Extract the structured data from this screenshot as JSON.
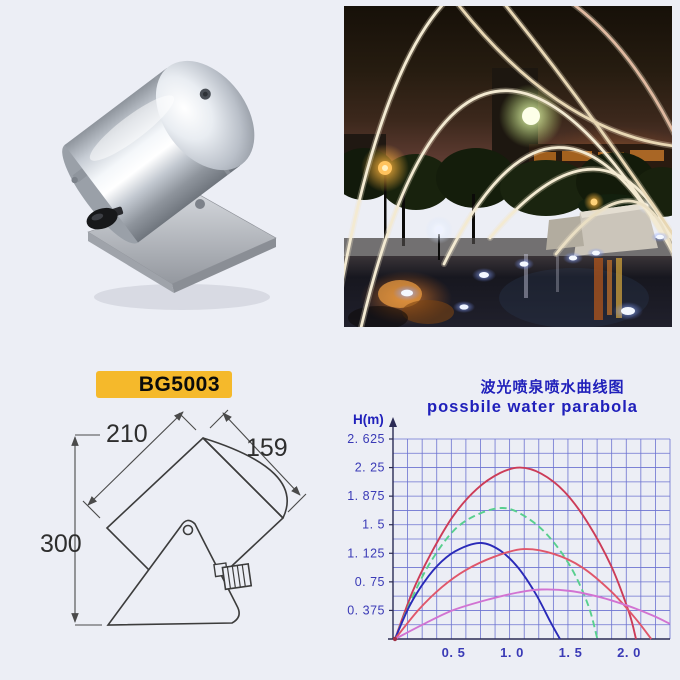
{
  "page": {
    "background": "#ECEEF5"
  },
  "product": {
    "model_label": "BG5003",
    "model_label_bg": "#F5B92B",
    "model_label_text_color": "#0B0B0B"
  },
  "diagram": {
    "dim_body_length": "210",
    "dim_face_diameter": "159",
    "dim_total_height": "300"
  },
  "chart_data": {
    "type": "line",
    "title_zh": "波光喷泉喷水曲线图",
    "title_en": "possbile water parabola",
    "ylabel": "H(m)",
    "title_color": "#2020BB",
    "grid_color": "#4D55C8",
    "axis_color": "#2b2b55",
    "xlim": [
      0,
      2.35
    ],
    "ylim": [
      0,
      2.625
    ],
    "grid": {
      "minor_x": 0.125,
      "minor_y": 0.1875,
      "visible": true
    },
    "legend_position": "none",
    "x_ticks": [
      {
        "value": 0.5,
        "label": "0. 5"
      },
      {
        "value": 1.0,
        "label": "1. 0"
      },
      {
        "value": 1.5,
        "label": "1. 5"
      },
      {
        "value": 2.0,
        "label": "2. 0"
      }
    ],
    "y_ticks": [
      {
        "value": 0.375,
        "label": "0. 375"
      },
      {
        "value": 0.75,
        "label": "0. 75"
      },
      {
        "value": 1.125,
        "label": "1. 125"
      },
      {
        "value": 1.5,
        "label": "1. 5"
      },
      {
        "value": 1.875,
        "label": "1. 875"
      },
      {
        "value": 2.25,
        "label": "2. 25"
      },
      {
        "value": 2.625,
        "label": "2. 625"
      }
    ],
    "series": [
      {
        "name": "tall-red-parabola",
        "color": "#CC3C58",
        "dash": null,
        "points": [
          [
            0,
            0
          ],
          [
            0.15,
            0.62
          ],
          [
            0.3,
            1.1
          ],
          [
            0.5,
            1.62
          ],
          [
            0.7,
            1.97
          ],
          [
            0.9,
            2.18
          ],
          [
            1.07,
            2.25
          ],
          [
            1.25,
            2.17
          ],
          [
            1.45,
            1.93
          ],
          [
            1.65,
            1.52
          ],
          [
            1.85,
            0.95
          ],
          [
            2.0,
            0.35
          ],
          [
            2.06,
            0
          ]
        ]
      },
      {
        "name": "green-parabola",
        "color": "#58CF8E",
        "dash": "7 4",
        "points": [
          [
            0,
            0
          ],
          [
            0.15,
            0.55
          ],
          [
            0.3,
            1.0
          ],
          [
            0.5,
            1.42
          ],
          [
            0.7,
            1.63
          ],
          [
            0.92,
            1.72
          ],
          [
            1.1,
            1.62
          ],
          [
            1.3,
            1.37
          ],
          [
            1.5,
            0.95
          ],
          [
            1.65,
            0.45
          ],
          [
            1.73,
            0
          ]
        ]
      },
      {
        "name": "blue-parabola",
        "color": "#2A2AB8",
        "dash": null,
        "points": [
          [
            0,
            0
          ],
          [
            0.12,
            0.42
          ],
          [
            0.25,
            0.75
          ],
          [
            0.4,
            1.02
          ],
          [
            0.55,
            1.18
          ],
          [
            0.74,
            1.26
          ],
          [
            0.9,
            1.16
          ],
          [
            1.05,
            0.94
          ],
          [
            1.2,
            0.6
          ],
          [
            1.33,
            0.22
          ],
          [
            1.41,
            0
          ]
        ]
      },
      {
        "name": "wide-red-parabola",
        "color": "#E0566A",
        "dash": null,
        "points": [
          [
            0,
            0
          ],
          [
            0.2,
            0.38
          ],
          [
            0.4,
            0.68
          ],
          [
            0.6,
            0.9
          ],
          [
            0.85,
            1.08
          ],
          [
            1.1,
            1.18
          ],
          [
            1.35,
            1.12
          ],
          [
            1.6,
            0.94
          ],
          [
            1.85,
            0.62
          ],
          [
            2.05,
            0.28
          ],
          [
            2.19,
            0
          ]
        ]
      },
      {
        "name": "magenta-parabola",
        "color": "#D273D2",
        "dash": null,
        "points": [
          [
            0,
            0
          ],
          [
            0.25,
            0.2
          ],
          [
            0.5,
            0.38
          ],
          [
            0.8,
            0.52
          ],
          [
            1.05,
            0.61
          ],
          [
            1.25,
            0.65
          ],
          [
            1.5,
            0.63
          ],
          [
            1.75,
            0.55
          ],
          [
            2.0,
            0.43
          ],
          [
            2.2,
            0.31
          ],
          [
            2.35,
            0.2
          ]
        ]
      }
    ]
  }
}
